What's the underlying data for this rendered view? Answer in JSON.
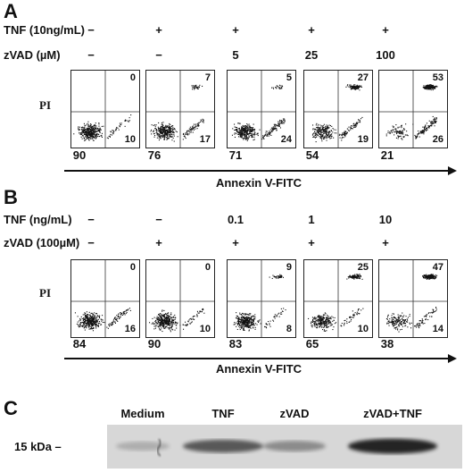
{
  "panel_a": {
    "letter": "A",
    "row1_label": "TNF (10ng/mL)",
    "row1_values": [
      "−",
      "+",
      "+",
      "+",
      "+"
    ],
    "row2_label": "zVAD (µM)",
    "row2_values": [
      "−",
      "−",
      "5",
      "25",
      "100"
    ],
    "y_label": "PI",
    "plots": [
      {
        "upper_right": "0",
        "lower_right": "10",
        "lower_left": "90"
      },
      {
        "upper_right": "7",
        "lower_right": "17",
        "lower_left": "76"
      },
      {
        "upper_right": "5",
        "lower_right": "24",
        "lower_left": "71"
      },
      {
        "upper_right": "27",
        "lower_right": "19",
        "lower_left": "54"
      },
      {
        "upper_right": "53",
        "lower_right": "26",
        "lower_left": "21"
      }
    ],
    "x_label": "Annexin V-FITC"
  },
  "panel_b": {
    "letter": "B",
    "row1_label": "TNF (ng/mL)",
    "row1_values": [
      "−",
      "−",
      "0.1",
      "1",
      "10"
    ],
    "row2_label": "zVAD (100µM)",
    "row2_values": [
      "−",
      "+",
      "+",
      "+",
      "+"
    ],
    "y_label": "PI",
    "plots": [
      {
        "upper_right": "0",
        "lower_right": "16",
        "lower_left": "84"
      },
      {
        "upper_right": "0",
        "lower_right": "10",
        "lower_left": "90"
      },
      {
        "upper_right": "9",
        "lower_right": "8",
        "lower_left": "83"
      },
      {
        "upper_right": "25",
        "lower_right": "10",
        "lower_left": "65"
      },
      {
        "upper_right": "47",
        "lower_right": "14",
        "lower_left": "38"
      }
    ],
    "x_label": "Annexin V-FITC"
  },
  "panel_c": {
    "letter": "C",
    "lanes": [
      "Medium",
      "TNF",
      "zVAD",
      "zVAD+TNF"
    ],
    "marker": "15 kDa –",
    "band_intensity": [
      0.05,
      0.55,
      0.25,
      0.85
    ]
  }
}
